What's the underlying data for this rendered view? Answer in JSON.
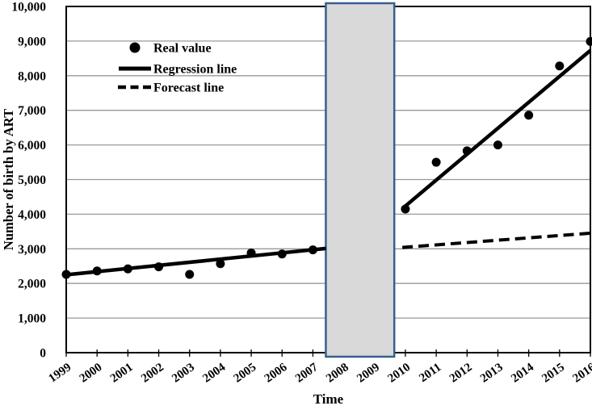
{
  "colors": {
    "background": "#ffffff",
    "grid": "#999999",
    "frame": "#000000",
    "series": "#000000",
    "band_fill": "#d9d9d9",
    "band_border": "#376091",
    "text": "#000000"
  },
  "chart_data": {
    "type": "scatter",
    "title": "",
    "xlabel": "Time",
    "ylabel": "Number of birth by ART",
    "grid": true,
    "legend_position": "top-left",
    "x_ticks": [
      1999,
      2000,
      2001,
      2002,
      2003,
      2004,
      2005,
      2006,
      2007,
      2008,
      2009,
      2010,
      2011,
      2012,
      2013,
      2014,
      2015,
      2016
    ],
    "ylim": [
      0,
      10000
    ],
    "y_tick_step": 1000,
    "legend": [
      {
        "label": "Real value",
        "type": "dot"
      },
      {
        "label": "Regression line",
        "type": "solid"
      },
      {
        "label": "Forecast line",
        "type": "dashed"
      }
    ],
    "points": [
      {
        "x": 1999,
        "y": 2260
      },
      {
        "x": 2000,
        "y": 2360
      },
      {
        "x": 2001,
        "y": 2420
      },
      {
        "x": 2002,
        "y": 2480
      },
      {
        "x": 2003,
        "y": 2260
      },
      {
        "x": 2004,
        "y": 2570
      },
      {
        "x": 2005,
        "y": 2880
      },
      {
        "x": 2006,
        "y": 2850
      },
      {
        "x": 2007,
        "y": 2970
      },
      {
        "x": 2010,
        "y": 4150
      },
      {
        "x": 2011,
        "y": 5500
      },
      {
        "x": 2012,
        "y": 5830
      },
      {
        "x": 2013,
        "y": 6000
      },
      {
        "x": 2014,
        "y": 6860
      },
      {
        "x": 2015,
        "y": 8280
      },
      {
        "x": 2016,
        "y": 8990
      }
    ],
    "segments": [
      {
        "name": "regression-line-pre",
        "style": "solid",
        "x": [
          1999.0,
          2007.42
        ],
        "y": [
          2250,
          3010
        ]
      },
      {
        "name": "regression-line-post",
        "style": "solid",
        "x": [
          2009.9,
          2016.0
        ],
        "y": [
          4160,
          8730
        ]
      },
      {
        "name": "forecast-line",
        "style": "dashed",
        "x": [
          2009.9,
          2016.0
        ],
        "y": [
          3040,
          3450
        ]
      }
    ],
    "band": {
      "x_start": 2007.42,
      "x_end": 2009.64,
      "label": "excluded-period-2008-2009"
    }
  }
}
